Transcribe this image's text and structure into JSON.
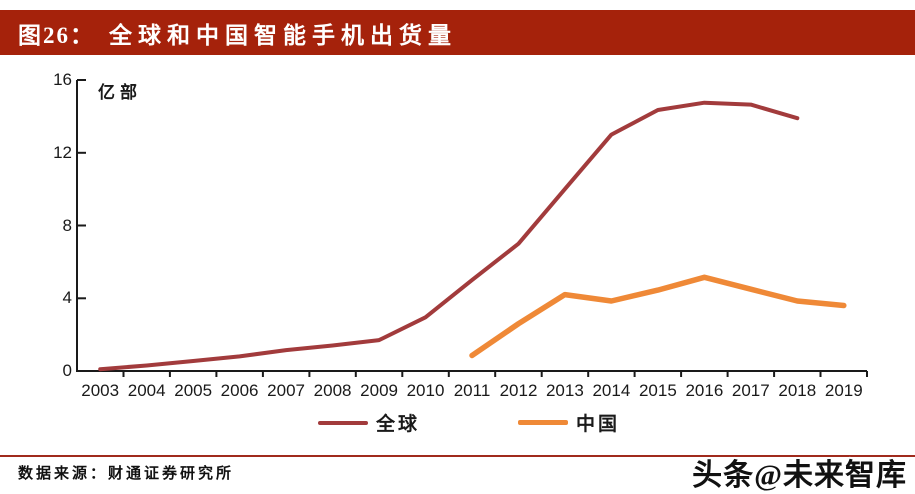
{
  "header": {
    "figure_label": "图26：",
    "title": "全球和中国智能手机出货量"
  },
  "colors": {
    "banner_bg": "#A5220B",
    "banner_text": "#FFFFFF",
    "global_line": "#A23B3C",
    "china_line": "#EF8937",
    "separator": "#A02A1C",
    "axis": "#1A1A1A"
  },
  "chart_data": {
    "type": "line",
    "unit_label": "亿部",
    "categories": [
      "2003",
      "2004",
      "2005",
      "2006",
      "2007",
      "2008",
      "2009",
      "2010",
      "2011",
      "2012",
      "2013",
      "2014",
      "2015",
      "2016",
      "2017",
      "2018",
      "2019"
    ],
    "series": [
      {
        "name": "全球",
        "color": "#A23B3C",
        "values": [
          0.1,
          0.3,
          0.55,
          0.8,
          1.15,
          1.4,
          1.7,
          2.95,
          5.0,
          7.0,
          10.0,
          13.0,
          14.35,
          14.75,
          14.65,
          13.9,
          null
        ]
      },
      {
        "name": "中国",
        "color": "#EF8937",
        "values": [
          null,
          null,
          null,
          null,
          null,
          null,
          null,
          null,
          0.85,
          2.6,
          4.2,
          3.85,
          4.45,
          5.15,
          4.5,
          3.85,
          3.6
        ]
      }
    ],
    "yticks": [
      0,
      4,
      8,
      12,
      16
    ],
    "ylim": [
      0,
      16
    ],
    "grid": false,
    "legend_position": "bottom"
  },
  "footer": {
    "source_label": "数据来源：财通证券研究所"
  },
  "watermark": {
    "text": "头条@未来智库"
  }
}
